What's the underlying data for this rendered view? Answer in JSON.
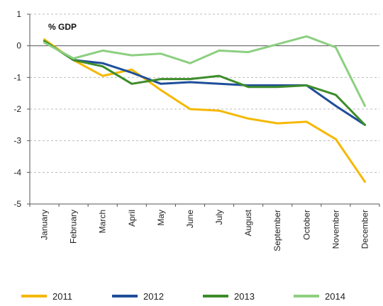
{
  "chart_data": {
    "type": "line",
    "title": "",
    "unit_label": "% GDP",
    "xlabel": "",
    "ylabel": "",
    "ylim": [
      -5,
      1
    ],
    "yticks": [
      1,
      0,
      -1,
      -2,
      -3,
      -4,
      -5
    ],
    "grid": "horizontal dashed",
    "legend_position": "bottom",
    "categories": [
      "January",
      "February",
      "March",
      "April",
      "May",
      "June",
      "July",
      "August",
      "September",
      "October",
      "November",
      "December"
    ],
    "series": [
      {
        "name": "2011",
        "color": "#f5b800",
        "values": [
          0.2,
          -0.45,
          -0.95,
          -0.75,
          -1.4,
          -2.0,
          -2.05,
          -2.3,
          -2.45,
          -2.4,
          -2.95,
          -4.3
        ]
      },
      {
        "name": "2012",
        "color": "#1f4e99",
        "values": [
          0.15,
          -0.45,
          -0.55,
          -0.85,
          -1.2,
          -1.15,
          -1.2,
          -1.25,
          -1.25,
          -1.25,
          -1.9,
          -2.5
        ]
      },
      {
        "name": "2013",
        "color": "#3d8c2a",
        "values": [
          0.15,
          -0.45,
          -0.65,
          -1.2,
          -1.05,
          -1.05,
          -0.95,
          -1.3,
          -1.3,
          -1.25,
          -1.55,
          -2.5
        ]
      },
      {
        "name": "2014",
        "color": "#8ccf80",
        "values": [
          0.1,
          -0.4,
          -0.15,
          -0.3,
          -0.25,
          -0.55,
          -0.15,
          -0.2,
          0.05,
          0.3,
          -0.05,
          -1.9
        ]
      }
    ]
  }
}
